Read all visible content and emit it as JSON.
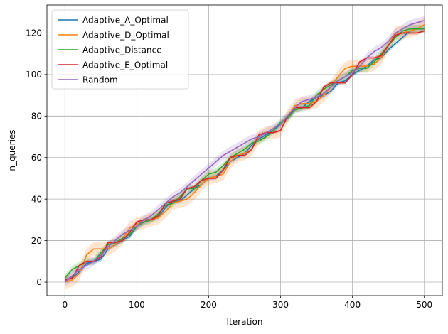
{
  "chart_data": {
    "type": "line",
    "title": "",
    "xlabel": "Iteration",
    "ylabel": "n_queries",
    "xlim": [
      -25,
      525
    ],
    "ylim": [
      -6.5,
      133.5
    ],
    "xticks": [
      0,
      100,
      200,
      300,
      400,
      500
    ],
    "yticks": [
      0,
      20,
      40,
      60,
      80,
      100,
      120
    ],
    "grid": true,
    "legend_position": "top-left",
    "series": [
      {
        "name": "Adaptive_A_Optimal",
        "color": "#1f77b4",
        "x": [
          0,
          10,
          20,
          30,
          40,
          50,
          60,
          70,
          80,
          90,
          100,
          110,
          120,
          130,
          140,
          150,
          160,
          170,
          180,
          190,
          200,
          210,
          220,
          230,
          240,
          250,
          260,
          270,
          280,
          290,
          300,
          310,
          320,
          330,
          340,
          350,
          360,
          370,
          380,
          390,
          400,
          410,
          420,
          430,
          440,
          450,
          460,
          470,
          480,
          490,
          500
        ],
        "y": [
          1,
          2,
          5,
          9,
          10,
          11,
          16,
          18,
          20,
          22,
          27,
          29,
          30,
          31,
          36,
          39,
          39,
          42,
          45,
          47,
          50,
          51,
          54,
          58,
          60,
          62,
          66,
          69,
          71,
          73,
          76,
          80,
          83,
          84,
          87,
          89,
          90,
          92,
          96,
          97,
          100,
          102,
          104,
          107,
          108,
          112,
          115,
          118,
          121,
          122,
          122
        ]
      },
      {
        "name": "Adaptive_D_Optimal",
        "color": "#ff7f0e",
        "x": [
          0,
          10,
          20,
          30,
          40,
          50,
          60,
          70,
          80,
          90,
          100,
          110,
          120,
          130,
          140,
          150,
          160,
          170,
          180,
          190,
          200,
          210,
          220,
          230,
          240,
          250,
          260,
          270,
          280,
          290,
          300,
          310,
          320,
          330,
          340,
          350,
          360,
          370,
          380,
          390,
          400,
          410,
          420,
          430,
          440,
          450,
          460,
          470,
          480,
          490,
          500
        ],
        "y": [
          0,
          1,
          4,
          13,
          16,
          16,
          16,
          18,
          21,
          26,
          28,
          29,
          30,
          31,
          34,
          38,
          39,
          40,
          43,
          47,
          50,
          51,
          52,
          58,
          61,
          62,
          64,
          70,
          72,
          72,
          73,
          80,
          85,
          86,
          86,
          87,
          90,
          94,
          99,
          103,
          104,
          104,
          104,
          105,
          108,
          114,
          120,
          120,
          121,
          122,
          124
        ]
      },
      {
        "name": "Adaptive_Distance",
        "color": "#2ca02c",
        "x": [
          0,
          10,
          20,
          30,
          40,
          50,
          60,
          70,
          80,
          90,
          100,
          110,
          120,
          130,
          140,
          150,
          160,
          170,
          180,
          190,
          200,
          210,
          220,
          230,
          240,
          250,
          260,
          270,
          280,
          290,
          300,
          310,
          320,
          330,
          340,
          350,
          360,
          370,
          380,
          390,
          400,
          410,
          420,
          430,
          440,
          450,
          460,
          470,
          480,
          490,
          500
        ],
        "y": [
          2,
          6,
          8,
          10,
          10,
          14,
          18,
          19,
          21,
          23,
          27,
          29,
          30,
          33,
          37,
          38,
          41,
          45,
          45,
          49,
          52,
          53,
          56,
          60,
          62,
          64,
          67,
          68,
          70,
          73,
          77,
          79,
          83,
          84,
          85,
          90,
          93,
          95,
          97,
          99,
          102,
          103,
          103,
          106,
          110,
          114,
          118,
          121,
          122,
          122,
          122
        ]
      },
      {
        "name": "Adaptive_E_Optimal",
        "color": "#d62728",
        "x": [
          0,
          10,
          20,
          30,
          40,
          50,
          60,
          70,
          80,
          90,
          100,
          110,
          120,
          130,
          140,
          150,
          160,
          170,
          180,
          190,
          200,
          210,
          220,
          230,
          240,
          250,
          260,
          270,
          280,
          290,
          300,
          310,
          320,
          330,
          340,
          350,
          360,
          370,
          380,
          390,
          400,
          410,
          420,
          430,
          440,
          450,
          460,
          470,
          480,
          490,
          500
        ],
        "y": [
          1,
          2,
          8,
          10,
          10,
          12,
          19,
          19,
          20,
          24,
          29,
          30,
          30,
          32,
          38,
          39,
          40,
          45,
          46,
          49,
          50,
          50,
          54,
          60,
          61,
          61,
          64,
          71,
          72,
          72,
          73,
          80,
          84,
          84,
          84,
          87,
          94,
          96,
          96,
          96,
          100,
          106,
          108,
          108,
          109,
          114,
          119,
          120,
          120,
          120,
          121
        ]
      },
      {
        "name": "Random",
        "color": "#9467bd",
        "x": [
          0,
          10,
          20,
          30,
          40,
          50,
          60,
          70,
          80,
          90,
          100,
          110,
          120,
          130,
          140,
          150,
          160,
          170,
          180,
          190,
          200,
          210,
          220,
          230,
          240,
          250,
          260,
          270,
          280,
          290,
          300,
          310,
          320,
          330,
          340,
          350,
          360,
          370,
          380,
          390,
          400,
          410,
          420,
          430,
          440,
          450,
          460,
          470,
          480,
          490,
          500
        ],
        "y": [
          0,
          3,
          6,
          8,
          10,
          13,
          17,
          20,
          23,
          25,
          27,
          30,
          32,
          35,
          38,
          41,
          43,
          46,
          49,
          52,
          55,
          58,
          61,
          63,
          65,
          67,
          69,
          70,
          72,
          74,
          76,
          80,
          84,
          87,
          88,
          89,
          91,
          94,
          97,
          99,
          101,
          104,
          108,
          111,
          113,
          116,
          120,
          122,
          124,
          125,
          126
        ]
      }
    ]
  }
}
